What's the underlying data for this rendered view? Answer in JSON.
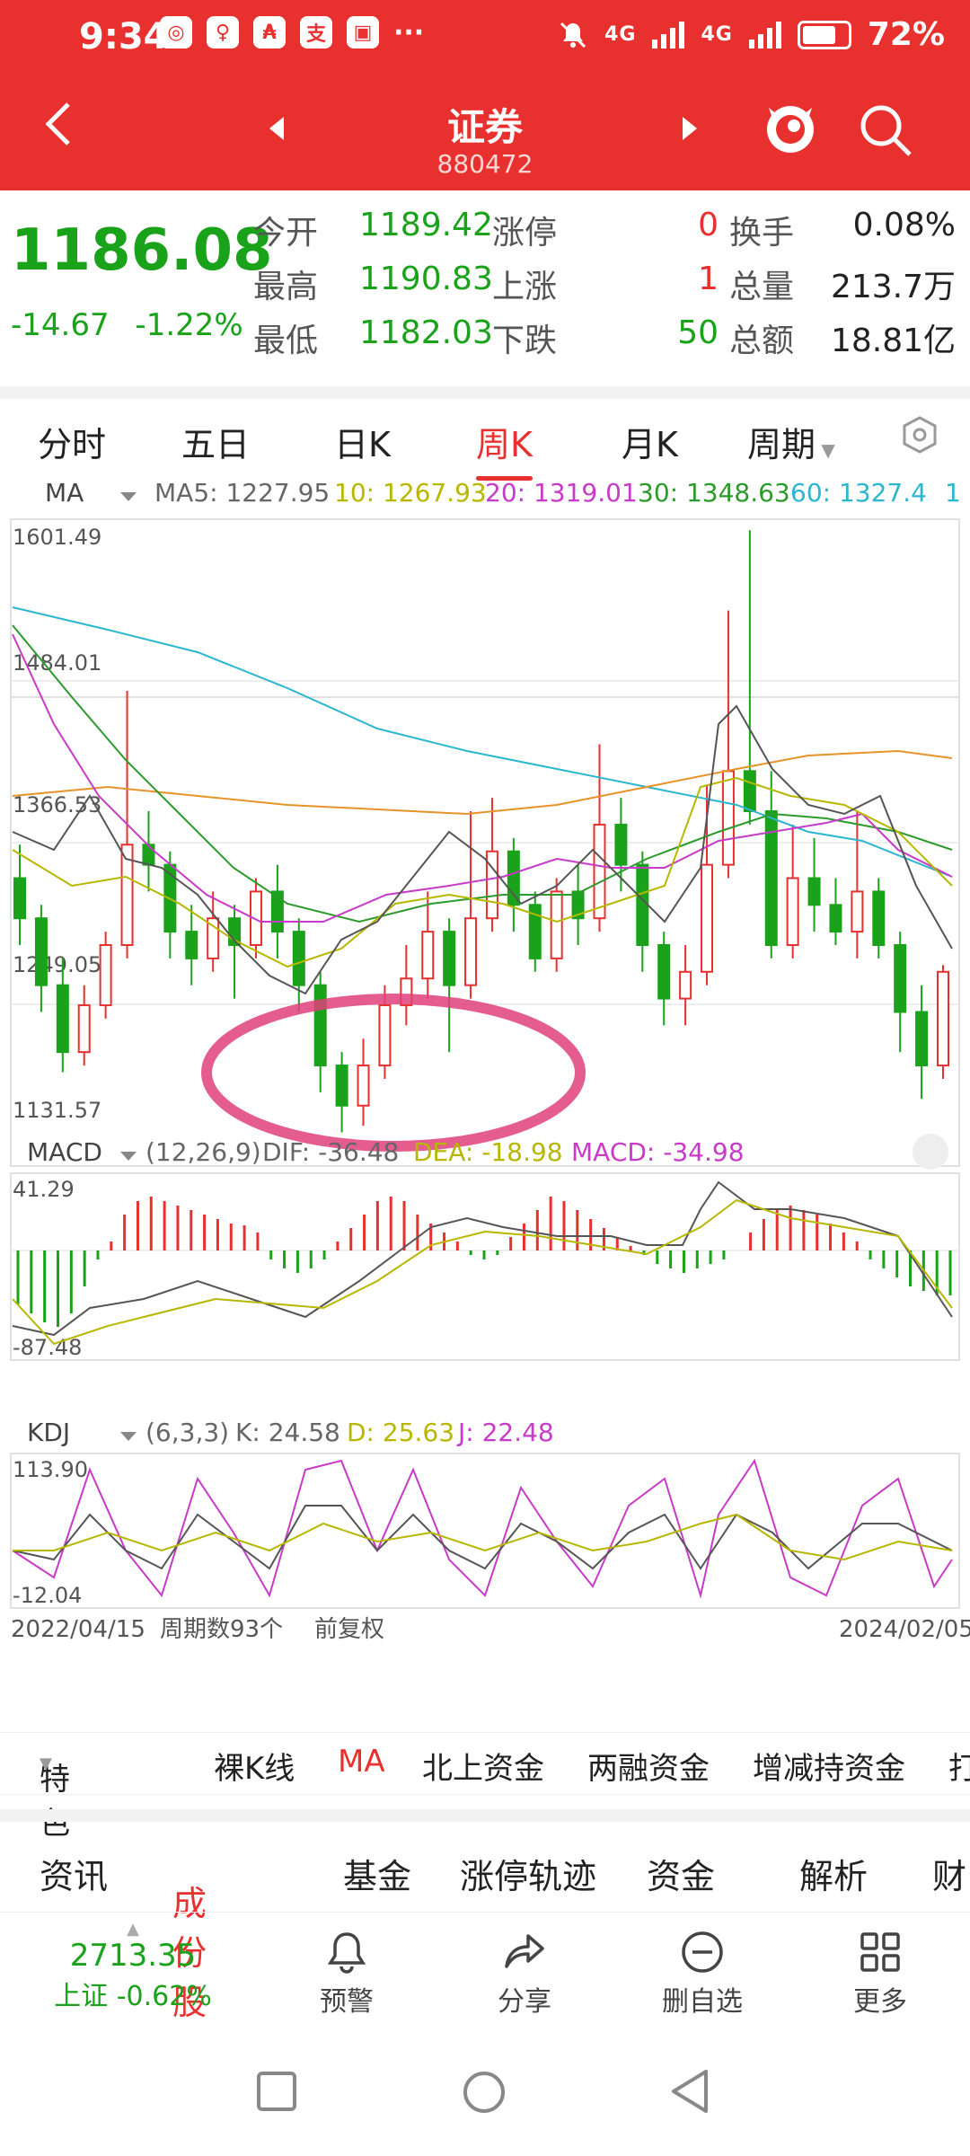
{
  "status_bar": {
    "time": "9:34",
    "apps": [
      "◎",
      "♀",
      "₳",
      "支",
      "▣"
    ],
    "signal1": "4G",
    "signal2": "4G",
    "battery": "72%"
  },
  "nav": {
    "title": "证券",
    "code": "880472"
  },
  "quote": {
    "price": "1186.08",
    "change": "-14.67",
    "change_pct": "-1.22%",
    "rows": [
      {
        "l1": "今开",
        "v1": "1189.42",
        "l2": "涨停",
        "v2": "0",
        "l3": "换手",
        "v3": "0.08%"
      },
      {
        "l1": "最高",
        "v1": "1190.83",
        "l2": "上涨",
        "v2": "1",
        "l3": "总量",
        "v3": "213.7万"
      },
      {
        "l1": "最低",
        "v1": "1182.03",
        "l2": "下跌",
        "v2": "50",
        "l3": "总额",
        "v3": "18.81亿"
      }
    ]
  },
  "tabs": [
    "分时",
    "五日",
    "日K",
    "周K",
    "月K",
    "周期"
  ],
  "ma_legend": {
    "label": "MA",
    "ma5": "MA5: 1227.95",
    "ma10": "10: 1267.93",
    "ma20": "20: 1319.01",
    "ma30": "30: 1348.63",
    "ma60": "60: 1327.4",
    "suffix": "1"
  },
  "price_axis": {
    "top": "1601.49",
    "l2": "1484.01",
    "l3": "1366.53",
    "l4": "1249.05",
    "bottom": "1131.57"
  },
  "macd": {
    "label": "MACD",
    "params": "(12,26,9)",
    "dif": "DIF: -36.48",
    "dea": "DEA: -18.98",
    "macd": "MACD: -34.98",
    "top": "41.29",
    "bottom": "-87.48"
  },
  "kdj": {
    "label": "KDJ",
    "params": "(6,3,3)",
    "k": "K: 24.58",
    "d": "D: 25.63",
    "j": "J: 22.48",
    "top": "113.90",
    "bottom": "-12.04"
  },
  "footer_axis": {
    "start": "2022/04/15",
    "count": "周期数93个",
    "adj": "前复权",
    "end": "2024/02/05"
  },
  "indicator_bar": [
    "特色",
    "裸K线",
    "MA",
    "北上资金",
    "两融资金",
    "增减持资金",
    "打"
  ],
  "info_tabs": [
    "资讯",
    "成份股",
    "基金",
    "涨停轨迹",
    "资金",
    "解析",
    "财"
  ],
  "bottom_nav": {
    "index_value": "2713.35",
    "index_label": "上证 -0.62%",
    "items": [
      "预警",
      "分享",
      "删自选",
      "更多"
    ]
  },
  "colors": {
    "accent": "#e8312f",
    "up": "#e8312f",
    "down": "#1aa21a"
  },
  "chart_data": {
    "type": "candlestick",
    "note": "",
    "ylim": [
      1131.57,
      1601.49
    ],
    "x_range": [
      "2022/04/15",
      "2024/02/05"
    ],
    "candles": [
      [
        1340,
        1310,
        1365,
        1290
      ],
      [
        1310,
        1260,
        1320,
        1240
      ],
      [
        1260,
        1210,
        1280,
        1195
      ],
      [
        1210,
        1245,
        1260,
        1200
      ],
      [
        1245,
        1290,
        1300,
        1235
      ],
      [
        1290,
        1365,
        1480,
        1280
      ],
      [
        1365,
        1350,
        1390,
        1330
      ],
      [
        1350,
        1300,
        1360,
        1280
      ],
      [
        1300,
        1280,
        1320,
        1260
      ],
      [
        1280,
        1310,
        1330,
        1270
      ],
      [
        1310,
        1290,
        1320,
        1250
      ],
      [
        1290,
        1330,
        1340,
        1280
      ],
      [
        1330,
        1300,
        1350,
        1280
      ],
      [
        1300,
        1260,
        1310,
        1240
      ],
      [
        1260,
        1200,
        1270,
        1180
      ],
      [
        1200,
        1170,
        1210,
        1150
      ],
      [
        1170,
        1200,
        1220,
        1155
      ],
      [
        1200,
        1245,
        1260,
        1190
      ],
      [
        1245,
        1265,
        1290,
        1230
      ],
      [
        1265,
        1300,
        1330,
        1250
      ],
      [
        1300,
        1260,
        1310,
        1210
      ],
      [
        1260,
        1310,
        1390,
        1250
      ],
      [
        1310,
        1360,
        1400,
        1300
      ],
      [
        1360,
        1320,
        1370,
        1300
      ],
      [
        1320,
        1280,
        1330,
        1270
      ],
      [
        1280,
        1330,
        1340,
        1270
      ],
      [
        1330,
        1310,
        1350,
        1290
      ],
      [
        1310,
        1380,
        1440,
        1300
      ],
      [
        1380,
        1350,
        1400,
        1330
      ],
      [
        1350,
        1290,
        1360,
        1270
      ],
      [
        1290,
        1250,
        1300,
        1230
      ],
      [
        1250,
        1270,
        1290,
        1230
      ],
      [
        1270,
        1350,
        1410,
        1260
      ],
      [
        1350,
        1420,
        1540,
        1340
      ],
      [
        1420,
        1390,
        1600,
        1380
      ],
      [
        1390,
        1290,
        1420,
        1280
      ],
      [
        1290,
        1340,
        1380,
        1280
      ],
      [
        1340,
        1320,
        1370,
        1300
      ],
      [
        1320,
        1300,
        1340,
        1290
      ],
      [
        1300,
        1330,
        1390,
        1280
      ],
      [
        1330,
        1290,
        1340,
        1280
      ],
      [
        1290,
        1240,
        1300,
        1210
      ],
      [
        1240,
        1200,
        1260,
        1175
      ],
      [
        1200,
        1270,
        1275,
        1190
      ]
    ]
  }
}
